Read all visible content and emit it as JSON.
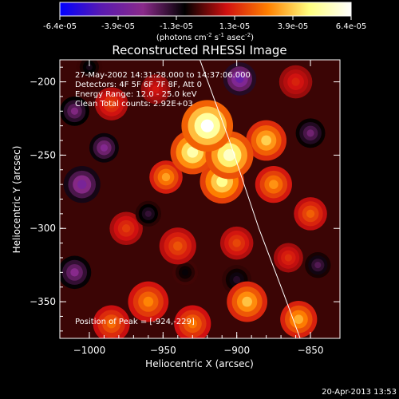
{
  "colorbar": {
    "tick_labels": [
      "-6.4e-05",
      "-3.9e-05",
      "-1.3e-05",
      "1.3e-05",
      "3.9e-05",
      "6.4e-05"
    ],
    "units_prefix": "(photons cm",
    "units_exp1": "-2",
    "units_mid": " s",
    "units_exp2": "-1",
    "units_asec": " asec",
    "units_exp3": "-2",
    "units_suffix": ")",
    "colors": [
      "#0000ff",
      "#5a1ab0",
      "#8a2a8a",
      "#000000",
      "#d01010",
      "#ff8000",
      "#ffff80",
      "#ffffff"
    ]
  },
  "chart_data": {
    "type": "heatmap",
    "title": "Reconstructed RHESSI Image",
    "xlabel": "Heliocentric X (arcsec)",
    "ylabel": "Heliocentric Y (arcsec)",
    "xlim": [
      -1020,
      -830
    ],
    "ylim": [
      -375,
      -185
    ],
    "x_ticks": [
      -1000,
      -950,
      -900,
      -850
    ],
    "y_ticks": [
      -200,
      -250,
      -300,
      -350
    ],
    "x_tick_labels": [
      "−1000",
      "−950",
      "−900",
      "−850"
    ],
    "y_tick_labels": [
      "−200",
      "−250",
      "−300",
      "−350"
    ],
    "annotations": [
      "27-May-2002 14:31:28.000 to 14:37:06.000",
      "Detectors: 4F 5F 6F 7F 8F, Att 0",
      "Energy Range: 12.0 - 25.0 keV",
      "Clean    Total counts: 2.92E+03"
    ],
    "peak_label": "Position of Peak = [-924,-229]",
    "peak": [
      -924,
      -229
    ],
    "value_range": [
      -6.4e-05,
      6.4e-05
    ],
    "limb_curve": [
      [
        -925,
        -185
      ],
      [
        -905,
        -240
      ],
      [
        -885,
        -300
      ],
      [
        -868,
        -345
      ],
      [
        -857,
        -375
      ]
    ],
    "blobs": [
      {
        "x": -920,
        "y": -230,
        "r": 14,
        "v": 6.4e-05
      },
      {
        "x": -905,
        "y": -250,
        "r": 13,
        "v": 5.6e-05
      },
      {
        "x": -930,
        "y": -248,
        "r": 12,
        "v": 5.2e-05
      },
      {
        "x": -910,
        "y": -268,
        "r": 12,
        "v": 4.8e-05
      },
      {
        "x": -880,
        "y": -240,
        "r": 11,
        "v": 3.9e-05
      },
      {
        "x": -948,
        "y": -265,
        "r": 9,
        "v": 3.2e-05
      },
      {
        "x": -875,
        "y": -270,
        "r": 10,
        "v": 3e-05
      },
      {
        "x": -893,
        "y": -350,
        "r": 11,
        "v": 3.7e-05
      },
      {
        "x": -858,
        "y": -362,
        "r": 10,
        "v": 3.4e-05
      },
      {
        "x": -960,
        "y": -350,
        "r": 11,
        "v": 2.8e-05
      },
      {
        "x": -985,
        "y": -365,
        "r": 10,
        "v": 2.4e-05
      },
      {
        "x": -930,
        "y": -365,
        "r": 10,
        "v": 2.6e-05
      },
      {
        "x": -985,
        "y": -215,
        "r": 9,
        "v": 1.7e-05
      },
      {
        "x": -940,
        "y": -312,
        "r": 10,
        "v": 2e-05
      },
      {
        "x": -975,
        "y": -300,
        "r": 9,
        "v": 1.6e-05
      },
      {
        "x": -900,
        "y": -310,
        "r": 9,
        "v": 1.8e-05
      },
      {
        "x": -865,
        "y": -320,
        "r": 8,
        "v": 1.4e-05
      },
      {
        "x": -850,
        "y": -290,
        "r": 9,
        "v": 2.2e-05
      },
      {
        "x": -860,
        "y": -200,
        "r": 9,
        "v": 1.2e-05
      },
      {
        "x": -955,
        "y": -205,
        "r": 8,
        "v": 1e-05
      },
      {
        "x": -1010,
        "y": -330,
        "r": 9,
        "v": -2.8e-05
      },
      {
        "x": -1005,
        "y": -270,
        "r": 10,
        "v": -3.4e-05
      },
      {
        "x": -990,
        "y": -245,
        "r": 8,
        "v": -3e-05
      },
      {
        "x": -1010,
        "y": -220,
        "r": 8,
        "v": -2.6e-05
      },
      {
        "x": -898,
        "y": -198,
        "r": 9,
        "v": -4e-05
      },
      {
        "x": -850,
        "y": -235,
        "r": 8,
        "v": -2.4e-05
      },
      {
        "x": -960,
        "y": -290,
        "r": 7,
        "v": -1.6e-05
      },
      {
        "x": -900,
        "y": -335,
        "r": 8,
        "v": -1.4e-05
      },
      {
        "x": -845,
        "y": -325,
        "r": 7,
        "v": -2e-05
      },
      {
        "x": -1000,
        "y": -190,
        "r": 7,
        "v": -1.2e-05
      },
      {
        "x": -935,
        "y": -330,
        "r": 7,
        "v": -1e-05
      }
    ]
  },
  "footer": {
    "timestamp": "20-Apr-2013 13:53"
  }
}
